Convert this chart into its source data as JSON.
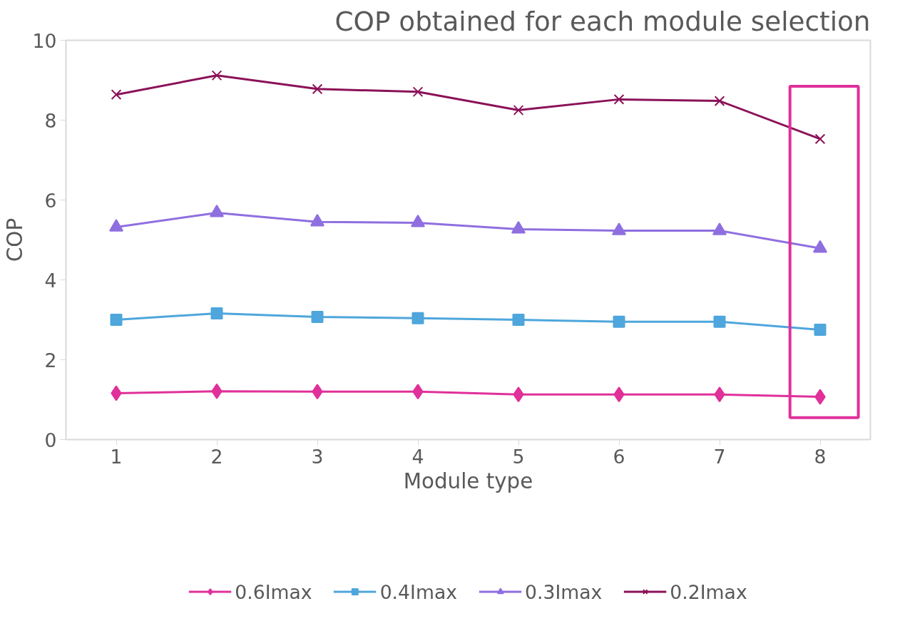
{
  "chart_data": {
    "type": "line",
    "title": "COP obtained for each module selection",
    "xlabel": "Module type",
    "ylabel": "COP",
    "categories": [
      "1",
      "2",
      "3",
      "4",
      "5",
      "6",
      "7",
      "8"
    ],
    "ylim": [
      0,
      10
    ],
    "yticks": [
      0,
      2,
      4,
      6,
      8,
      10
    ],
    "grid": false,
    "legend": "bottom",
    "line_style": "solid",
    "series": [
      {
        "name": "0.6Imax",
        "color": "#e0309a",
        "marker": "diamond",
        "values": [
          1.16,
          1.21,
          1.2,
          1.2,
          1.13,
          1.13,
          1.13,
          1.07
        ]
      },
      {
        "name": "0.4Imax",
        "color": "#4ea6dc",
        "marker": "square",
        "values": [
          3.0,
          3.16,
          3.07,
          3.04,
          3.0,
          2.95,
          2.95,
          2.75
        ]
      },
      {
        "name": "0.3Imax",
        "color": "#8f6fe0",
        "marker": "triangle",
        "values": [
          5.32,
          5.68,
          5.45,
          5.43,
          5.27,
          5.23,
          5.23,
          4.79
        ]
      },
      {
        "name": "0.2Imax",
        "color": "#8b1258",
        "marker": "cross",
        "values": [
          8.64,
          9.12,
          8.78,
          8.71,
          8.25,
          8.52,
          8.48,
          7.53
        ]
      }
    ]
  }
}
